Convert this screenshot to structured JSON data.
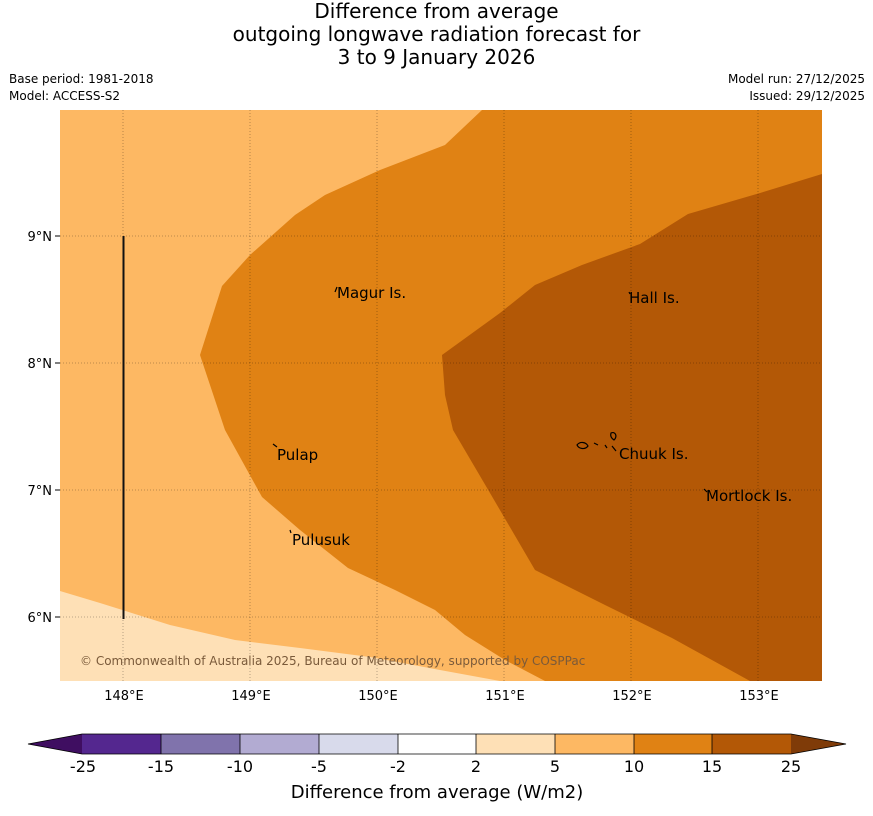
{
  "title": {
    "line1": "Difference from average",
    "line2": "outgoing longwave radiation forecast for",
    "line3": "3 to 9 January 2026"
  },
  "meta": {
    "base_period": "Base period: 1981-2018",
    "model": "Model: ACCESS-S2",
    "model_run": "Model run: 27/12/2025",
    "issued": "Issued: 29/12/2025"
  },
  "map": {
    "lat_ticks": [
      "9°N",
      "8°N",
      "7°N",
      "6°N"
    ],
    "lon_ticks": [
      "148°E",
      "149°E",
      "150°E",
      "151°E",
      "152°E",
      "153°E"
    ],
    "places": [
      "Magur Is.",
      "Hall Is.",
      "Pulap",
      "Chuuk Is.",
      "Mortlock Is.",
      "Pulusuk"
    ],
    "copyright": "© Commonwealth of Australia 2025, Bureau of Meteorology, supported by COSPPac"
  },
  "colorbar": {
    "label": "Difference from average (W/m2)",
    "ticks": [
      "-25",
      "-15",
      "-10",
      "-5",
      "-2",
      "2",
      "5",
      "10",
      "15",
      "25"
    ],
    "colors": {
      "lt_neg25": "#3f0e61",
      "neg25_neg15": "#54278f",
      "neg15_neg10": "#8073ac",
      "neg10_neg5": "#b2abd2",
      "neg5_neg2": "#d8daeb",
      "neg2_2": "#ffffff",
      "2_5": "#fee0b6",
      "5_10": "#fdb863",
      "10_15": "#e08214",
      "15_25": "#b35806",
      "gt_25": "#7f3b08"
    }
  }
}
